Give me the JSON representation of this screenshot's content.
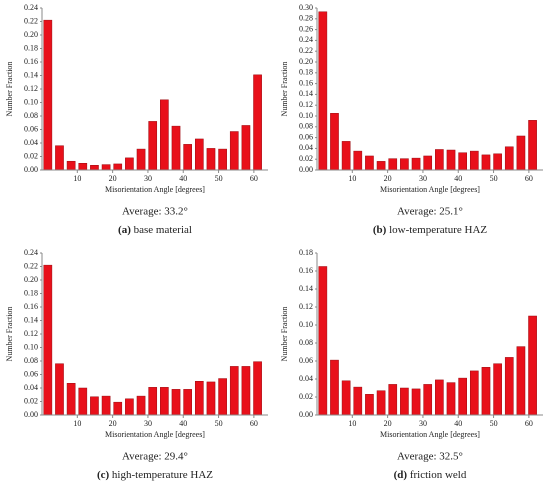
{
  "chart_data": [
    {
      "type": "histogram",
      "xlabel": "Misorientation Angle [degrees]",
      "ylabel": "Number Fraction",
      "color": "#e8101a",
      "bins": [
        0,
        3.3,
        6.6,
        9.9,
        13.2,
        16.5,
        19.8,
        23.1,
        26.4,
        29.7,
        33,
        36.3,
        39.6,
        42.9,
        46.2,
        49.5,
        52.8,
        56.1,
        59.4,
        62.7
      ],
      "values": [
        0.222,
        0.036,
        0.013,
        0.01,
        0.007,
        0.008,
        0.009,
        0.018,
        0.031,
        0.072,
        0.104,
        0.065,
        0.038,
        0.046,
        0.032,
        0.031,
        0.057,
        0.066,
        0.141
      ],
      "xlim": [
        0,
        64
      ],
      "xticks": [
        10,
        20,
        30,
        40,
        50,
        60
      ],
      "ylim": [
        0,
        0.24
      ],
      "yticks": [
        {
          "value": 0,
          "label": "0.00"
        },
        {
          "value": 0.02,
          "label": "0.02"
        },
        {
          "value": 0.04,
          "label": "0.04"
        },
        {
          "value": 0.06,
          "label": "0.06"
        },
        {
          "value": 0.08,
          "label": "0.08"
        },
        {
          "value": 0.1,
          "label": "0.10"
        },
        {
          "value": 0.12,
          "label": "0.12"
        },
        {
          "value": 0.14,
          "label": "0.14"
        },
        {
          "value": 0.16,
          "label": "0.16"
        },
        {
          "value": 0.18,
          "label": "0.18"
        },
        {
          "value": 0.2,
          "label": "0.20"
        },
        {
          "value": 0.22,
          "label": "0.22"
        },
        {
          "value": 0.24,
          "label": "0.24"
        }
      ],
      "average": "Average: 33.2°",
      "panel_label": "(a)",
      "caption": "base material"
    },
    {
      "type": "histogram",
      "xlabel": "Misorientation Angle [degrees]",
      "ylabel": "Number Fraction",
      "color": "#e8101a",
      "bins": [
        0,
        3.3,
        6.6,
        9.9,
        13.2,
        16.5,
        19.8,
        23.1,
        26.4,
        29.7,
        33,
        36.3,
        39.6,
        42.9,
        46.2,
        49.5,
        52.8,
        56.1,
        59.4,
        62.7
      ],
      "values": [
        0.293,
        0.105,
        0.053,
        0.035,
        0.026,
        0.016,
        0.021,
        0.021,
        0.022,
        0.026,
        0.038,
        0.037,
        0.032,
        0.035,
        0.028,
        0.03,
        0.043,
        0.063,
        0.092
      ],
      "xlim": [
        0,
        64
      ],
      "xticks": [
        10,
        20,
        30,
        40,
        50,
        60
      ],
      "ylim": [
        0,
        0.3
      ],
      "yticks": [
        {
          "value": 0,
          "label": "0.00"
        },
        {
          "value": 0.02,
          "label": "0.02"
        },
        {
          "value": 0.04,
          "label": "0.04"
        },
        {
          "value": 0.06,
          "label": "0.06"
        },
        {
          "value": 0.08,
          "label": "0.08"
        },
        {
          "value": 0.1,
          "label": "0.10"
        },
        {
          "value": 0.12,
          "label": "0.12"
        },
        {
          "value": 0.14,
          "label": "0.14"
        },
        {
          "value": 0.16,
          "label": "0.16"
        },
        {
          "value": 0.18,
          "label": "0.18"
        },
        {
          "value": 0.2,
          "label": "0.20"
        },
        {
          "value": 0.22,
          "label": "0.22"
        },
        {
          "value": 0.24,
          "label": "0.24"
        },
        {
          "value": 0.26,
          "label": "0.26"
        },
        {
          "value": 0.28,
          "label": "0.28"
        },
        {
          "value": 0.3,
          "label": "0.30"
        }
      ],
      "average": "Average: 25.1°",
      "panel_label": "(b)",
      "caption": "low-temperature HAZ"
    },
    {
      "type": "histogram",
      "xlabel": "Misorientation Angle [degrees]",
      "ylabel": "Number Fraction",
      "color": "#e8101a",
      "bins": [
        0,
        3.3,
        6.6,
        9.9,
        13.2,
        16.5,
        19.8,
        23.1,
        26.4,
        29.7,
        33,
        36.3,
        39.6,
        42.9,
        46.2,
        49.5,
        52.8,
        56.1,
        59.4,
        62.7
      ],
      "values": [
        0.222,
        0.076,
        0.047,
        0.04,
        0.027,
        0.028,
        0.019,
        0.024,
        0.028,
        0.041,
        0.041,
        0.038,
        0.038,
        0.05,
        0.049,
        0.054,
        0.072,
        0.072,
        0.079
      ],
      "xlim": [
        0,
        64
      ],
      "xticks": [
        10,
        20,
        30,
        40,
        50,
        60
      ],
      "ylim": [
        0,
        0.24
      ],
      "yticks": [
        {
          "value": 0,
          "label": "0.00"
        },
        {
          "value": 0.02,
          "label": "0.02"
        },
        {
          "value": 0.04,
          "label": "0.04"
        },
        {
          "value": 0.06,
          "label": "0.06"
        },
        {
          "value": 0.08,
          "label": "0.08"
        },
        {
          "value": 0.1,
          "label": "0.10"
        },
        {
          "value": 0.12,
          "label": "0.12"
        },
        {
          "value": 0.14,
          "label": "0.14"
        },
        {
          "value": 0.16,
          "label": "0.16"
        },
        {
          "value": 0.18,
          "label": "0.18"
        },
        {
          "value": 0.2,
          "label": "0.20"
        },
        {
          "value": 0.22,
          "label": "0.22"
        },
        {
          "value": 0.24,
          "label": "0.24"
        }
      ],
      "average": "Average: 29.4°",
      "panel_label": "(c)",
      "caption": "high-temperature HAZ"
    },
    {
      "type": "histogram",
      "xlabel": "Misorientation Angle [degrees]",
      "ylabel": "Number Fraction",
      "color": "#e8101a",
      "bins": [
        0,
        3.3,
        6.6,
        9.9,
        13.2,
        16.5,
        19.8,
        23.1,
        26.4,
        29.7,
        33,
        36.3,
        39.6,
        42.9,
        46.2,
        49.5,
        52.8,
        56.1,
        59.4,
        62.7
      ],
      "values": [
        0.165,
        0.061,
        0.038,
        0.031,
        0.023,
        0.027,
        0.034,
        0.03,
        0.029,
        0.034,
        0.039,
        0.036,
        0.041,
        0.049,
        0.053,
        0.057,
        0.064,
        0.076,
        0.11
      ],
      "xlim": [
        0,
        64
      ],
      "xticks": [
        10,
        20,
        30,
        40,
        50,
        60
      ],
      "ylim": [
        0,
        0.18
      ],
      "yticks": [
        {
          "value": 0,
          "label": "0.00"
        },
        {
          "value": 0.02,
          "label": "0.02"
        },
        {
          "value": 0.04,
          "label": "0.04"
        },
        {
          "value": 0.06,
          "label": "0.06"
        },
        {
          "value": 0.08,
          "label": "0.08"
        },
        {
          "value": 0.1,
          "label": "0.10"
        },
        {
          "value": 0.12,
          "label": "0.12"
        },
        {
          "value": 0.14,
          "label": "0.14"
        },
        {
          "value": 0.16,
          "label": "0.16"
        },
        {
          "value": 0.18,
          "label": "0.18"
        }
      ],
      "average": "Average: 32.5°",
      "panel_label": "(d)",
      "caption": "friction weld"
    }
  ]
}
